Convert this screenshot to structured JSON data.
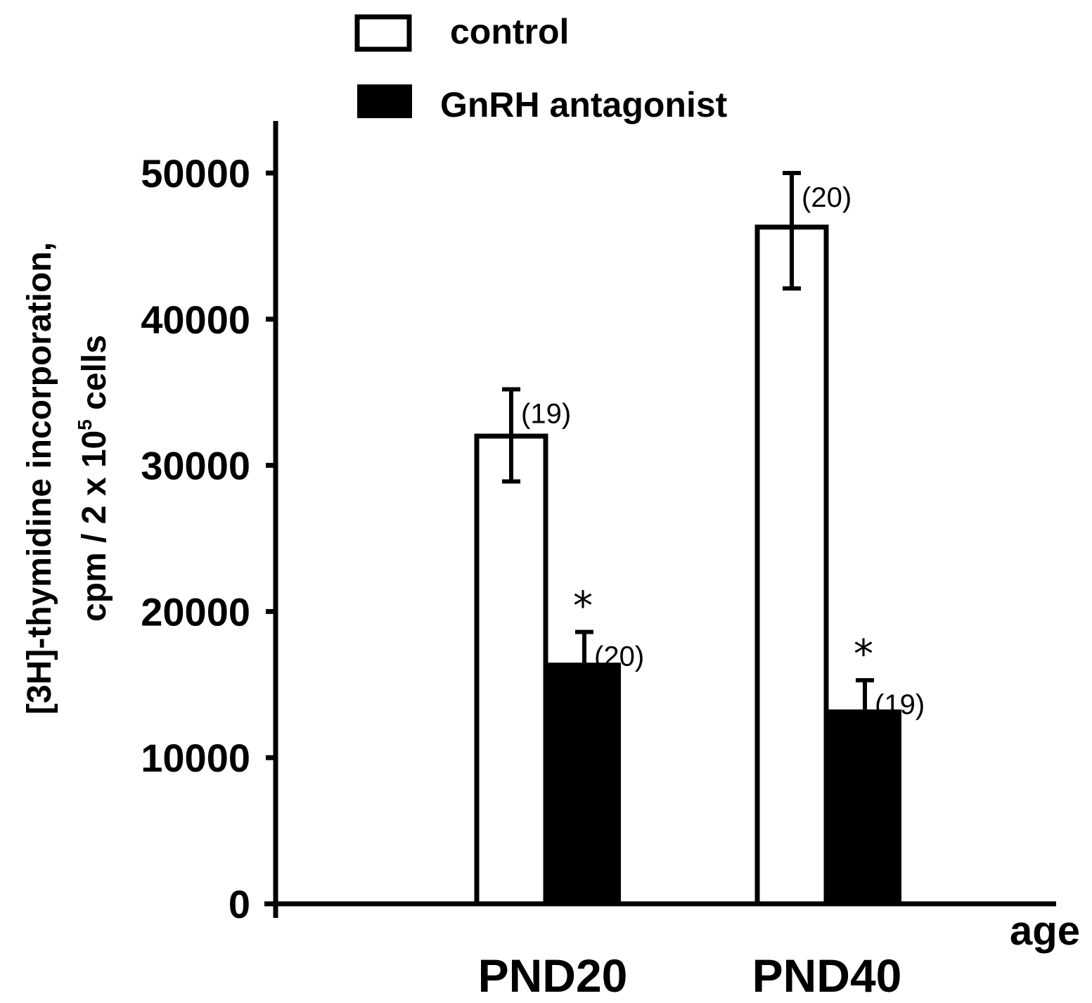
{
  "chart_data": {
    "type": "bar",
    "title": "",
    "xlabel": "age",
    "ylabel_lines": [
      "[3H]-thymidine incorporation,",
      "cpm / 2 x 10",
      "5",
      " cells"
    ],
    "categories": [
      "PND20",
      "PND40"
    ],
    "ylim": [
      0,
      50000
    ],
    "yticks": [
      "0",
      "10000",
      "20000",
      "30000",
      "40000",
      "50000"
    ],
    "legend_position": "top",
    "series": [
      {
        "name": "control",
        "fill": "#ffffff",
        "values": [
          32000,
          46300
        ],
        "error_plus": [
          3200,
          3700
        ],
        "error_minus": [
          3100,
          4200
        ],
        "n_labels": [
          "(19)",
          "(20)"
        ],
        "significance": [
          "",
          ""
        ]
      },
      {
        "name": "GnRH antagonist",
        "fill": "#000000",
        "values": [
          16500,
          13300
        ],
        "error_plus": [
          2100,
          2000
        ],
        "error_minus": [
          0,
          0
        ],
        "n_labels": [
          "(20)",
          "(19)"
        ],
        "significance": [
          "*",
          "*"
        ]
      }
    ]
  }
}
